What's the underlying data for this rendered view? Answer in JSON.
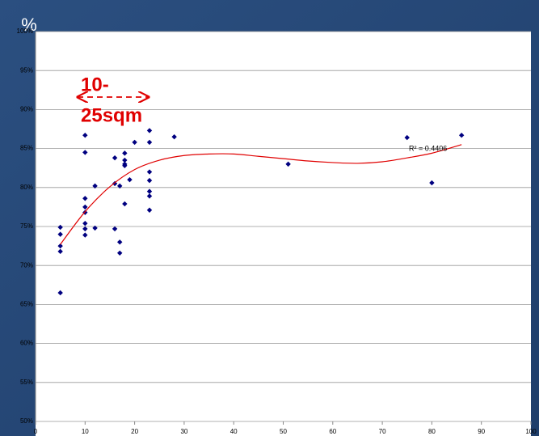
{
  "chart_data": {
    "type": "scatter",
    "y_axis_unit": "%",
    "annotation": [
      "10-",
      "25sqm"
    ],
    "r_squared_label": "R² = 0.4406",
    "xlim": [
      0,
      100
    ],
    "xticks": [
      0,
      10,
      20,
      30,
      40,
      50,
      60,
      70,
      80,
      90,
      100
    ],
    "ylim": [
      50,
      100
    ],
    "yticks": [
      {
        "value": 50,
        "label": "50%"
      },
      {
        "value": 55,
        "label": "55%"
      },
      {
        "value": 60,
        "label": "60%"
      },
      {
        "value": 65,
        "label": "65%"
      },
      {
        "value": 70,
        "label": "70%"
      },
      {
        "value": 75,
        "label": "75%"
      },
      {
        "value": 80,
        "label": "80%"
      },
      {
        "value": 85,
        "label": "85%"
      },
      {
        "value": 90,
        "label": "90%"
      },
      {
        "value": 95,
        "label": "95%"
      },
      {
        "value": 100,
        "label": "100%"
      }
    ],
    "grid": true,
    "series": [
      {
        "color": "#000080",
        "x": [
          5,
          5,
          5,
          5,
          5,
          10,
          10,
          10,
          10,
          10,
          10,
          10,
          10,
          12,
          12,
          16,
          16,
          16,
          17,
          17,
          17,
          18,
          18,
          18,
          18,
          18,
          19,
          20,
          23,
          23,
          23,
          23,
          23,
          23,
          23,
          28,
          51,
          75,
          80,
          86
        ],
        "values": [
          74.9,
          74,
          72.5,
          71.8,
          66.5,
          86.7,
          84.5,
          78.6,
          77.5,
          76.8,
          75.4,
          74.7,
          73.9,
          80.2,
          74.8,
          83.8,
          80.5,
          74.7,
          80.2,
          73,
          71.6,
          84.4,
          83.5,
          83,
          82.8,
          77.9,
          81,
          85.8,
          87.3,
          85.8,
          82,
          80.9,
          79.5,
          78.9,
          77.1,
          86.5,
          83,
          86.4,
          80.6,
          86.7
        ]
      }
    ],
    "trendline": {
      "color": "#e00000",
      "x": [
        5,
        10,
        15,
        20,
        25,
        30,
        35,
        40,
        45,
        50,
        55,
        60,
        65,
        70,
        75,
        80,
        86
      ],
      "values": [
        72.7,
        76.9,
        80.1,
        82.3,
        83.5,
        84.1,
        84.3,
        84.3,
        84.0,
        83.7,
        83.4,
        83.2,
        83.1,
        83.3,
        83.8,
        84.4,
        85.5
      ]
    }
  }
}
